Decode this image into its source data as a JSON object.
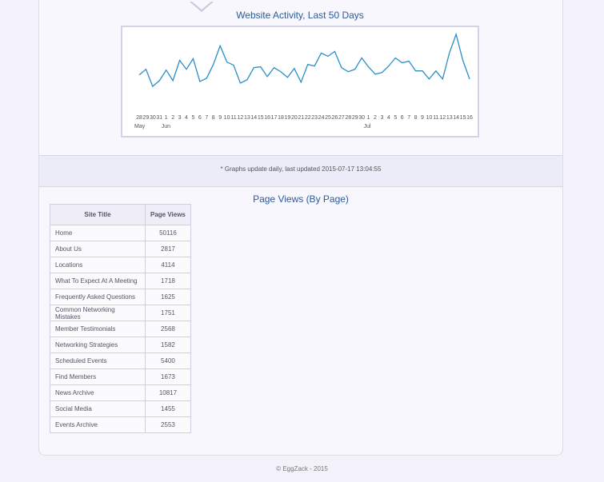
{
  "chart_data": {
    "type": "line",
    "title": "Website Activity, Last 50 Days",
    "color": "#2a8fc8",
    "categories": [
      "28",
      "29",
      "30",
      "31",
      "1",
      "2",
      "3",
      "4",
      "5",
      "6",
      "7",
      "8",
      "9",
      "10",
      "11",
      "12",
      "13",
      "14",
      "15",
      "16",
      "17",
      "18",
      "19",
      "20",
      "21",
      "22",
      "23",
      "24",
      "25",
      "26",
      "27",
      "28",
      "29",
      "30",
      "1",
      "2",
      "3",
      "4",
      "5",
      "6",
      "7",
      "8",
      "9",
      "10",
      "11",
      "12",
      "13",
      "14",
      "15",
      "16"
    ],
    "month_labels": [
      "May",
      null,
      null,
      null,
      "Jun",
      null,
      null,
      null,
      null,
      null,
      null,
      null,
      null,
      null,
      null,
      null,
      null,
      null,
      null,
      null,
      null,
      null,
      null,
      null,
      null,
      null,
      null,
      null,
      null,
      null,
      null,
      null,
      null,
      null,
      "Jul",
      null,
      null,
      null,
      null,
      null,
      null,
      null,
      null,
      null,
      null,
      null,
      null,
      null,
      null,
      null
    ],
    "values": [
      27,
      34,
      13,
      20,
      33,
      20,
      45,
      34,
      47,
      19,
      23,
      40,
      63,
      43,
      39,
      17,
      21,
      36,
      37,
      25,
      36,
      31,
      24,
      35,
      18,
      40,
      38,
      54,
      50,
      56,
      36,
      31,
      34,
      48,
      37,
      28,
      30,
      38,
      48,
      42,
      44,
      32,
      32,
      22,
      32,
      22,
      54,
      77,
      45,
      22
    ]
  },
  "note": "* Graphs update daily, last updated 2015-07-17 13:04:55",
  "table": {
    "title": "Page Views (By Page)",
    "headers": [
      "Site Title",
      "Page Views"
    ],
    "rows": [
      [
        "Home",
        "50116"
      ],
      [
        "About Us",
        "2817"
      ],
      [
        "Locations",
        "4114"
      ],
      [
        "What To Expect At A Meeting",
        "1718"
      ],
      [
        "Frequently Asked Questions",
        "1625"
      ],
      [
        "Common Networking Mistakes",
        "1751"
      ],
      [
        "Member Testimonials",
        "2568"
      ],
      [
        "Networking Strategies",
        "1582"
      ],
      [
        "Scheduled Events",
        "5400"
      ],
      [
        "Find Members",
        "1673"
      ],
      [
        "News Archive",
        "10817"
      ],
      [
        "Social Media",
        "1455"
      ],
      [
        "Events Archive",
        "2553"
      ]
    ]
  },
  "footer": "© EggZack - 2015"
}
